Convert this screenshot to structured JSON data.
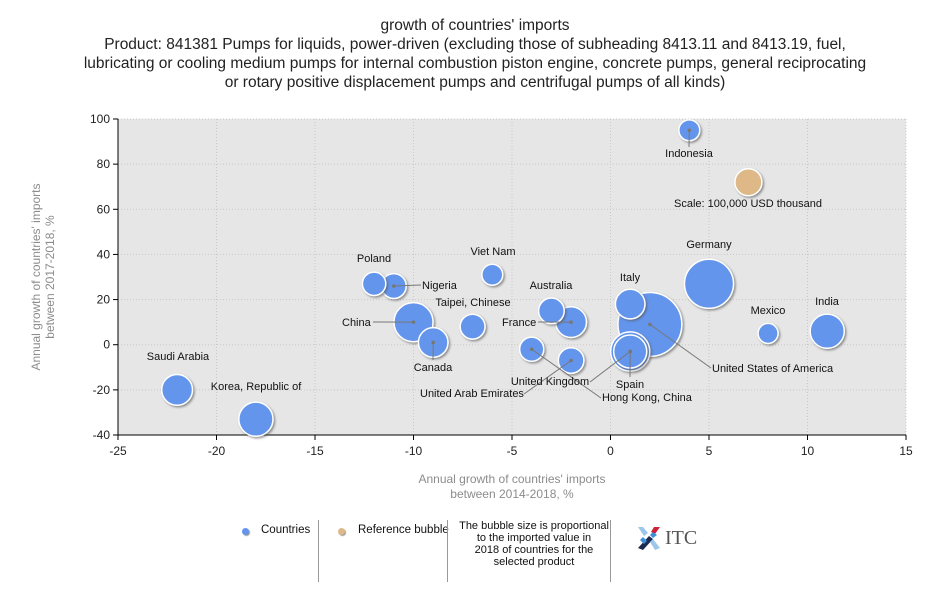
{
  "title": {
    "line1": "growth of countries' imports",
    "line2": "Product: 841381 Pumps for liquids, power-driven (excluding those of subheading 8413.11 and 8413.19, fuel,",
    "line3": "lubricating or cooling medium pumps for internal combustion piston engine, concrete pumps, general reciprocating",
    "line4": "or rotary positive displacement pumps and centrifugal pumps of all kinds)"
  },
  "legend": {
    "countries": "Countries",
    "reference": "Reference bubble",
    "note_line1": "The bubble size is proportional",
    "note_line2": "to the imported value in",
    "note_line3": "2018 of countries for the",
    "note_line4": "selected product",
    "logo_text": "ITC"
  },
  "colors": {
    "country_bubble": "#6495ed",
    "reference_bubble": "#deb887",
    "plot_background": "#e6e6e6",
    "logo_blue": "#3a8fd6",
    "logo_red": "#d0203a",
    "logo_navy": "#1b2a4e",
    "logo_lightblue": "#9cc7ea"
  },
  "chart_data": {
    "type": "scatter",
    "subtype": "bubble",
    "title": "growth of countries' imports",
    "xlabel": "Annual growth of countries' imports between 2014-2018, %",
    "xlabel_lines": [
      "Annual growth of countries' imports",
      "between 2014-2018, %"
    ],
    "ylabel": "Annual growth of countries' imports between 2017-2018, %",
    "ylabel_lines": [
      "Annual growth of countries' imports",
      "between 2017-2018, %"
    ],
    "xlim": [
      -25,
      15
    ],
    "ylim": [
      -40,
      100
    ],
    "xticks": [
      -25,
      -20,
      -15,
      -10,
      -5,
      0,
      5,
      10,
      15
    ],
    "yticks": [
      -40,
      -20,
      0,
      20,
      40,
      60,
      80,
      100
    ],
    "grid": true,
    "legend_position": "bottom",
    "size_note": "The bubble size is proportional to the imported value in 2018 of countries for the selected product",
    "series": [
      {
        "name": "Countries",
        "points": [
          {
            "label": "Indonesia",
            "x": 4,
            "y": 95,
            "size": 60
          },
          {
            "label": "Germany",
            "x": 5,
            "y": 27,
            "size": 330
          },
          {
            "label": "United States of America",
            "x": 2,
            "y": 9,
            "size": 560
          },
          {
            "label": "Italy",
            "x": 1,
            "y": 18,
            "size": 120
          },
          {
            "label": "United Kingdom",
            "x": 1,
            "y": -3,
            "size": 210
          },
          {
            "label": "Spain",
            "x": 1,
            "y": -3,
            "size": 150
          },
          {
            "label": "Mexico",
            "x": 8,
            "y": 5,
            "size": 55
          },
          {
            "label": "India",
            "x": 11,
            "y": 6,
            "size": 160
          },
          {
            "label": "Viet Nam",
            "x": -6,
            "y": 31,
            "size": 60
          },
          {
            "label": "Poland",
            "x": -12,
            "y": 27,
            "size": 75
          },
          {
            "label": "Nigeria",
            "x": -11,
            "y": 26,
            "size": 85
          },
          {
            "label": "China",
            "x": -10,
            "y": 10,
            "size": 210
          },
          {
            "label": "Canada",
            "x": -9,
            "y": 1,
            "size": 120
          },
          {
            "label": "Taipei, Chinese",
            "x": -7,
            "y": 8,
            "size": 85
          },
          {
            "label": "Australia",
            "x": -3,
            "y": 15,
            "size": 90
          },
          {
            "label": "France",
            "x": -2,
            "y": 10,
            "size": 130
          },
          {
            "label": "Hong Kong, China",
            "x": -4,
            "y": -2,
            "size": 80
          },
          {
            "label": "United Arab Emirates",
            "x": -2,
            "y": -7,
            "size": 90
          },
          {
            "label": "Saudi Arabia",
            "x": -22,
            "y": -20,
            "size": 130
          },
          {
            "label": "Korea, Republic of",
            "x": -18,
            "y": -33,
            "size": 160
          }
        ]
      },
      {
        "name": "Reference bubble",
        "points": [
          {
            "label": "Scale: 100,000 USD thousand",
            "x": 7,
            "y": 72,
            "size": 100
          }
        ]
      }
    ]
  }
}
